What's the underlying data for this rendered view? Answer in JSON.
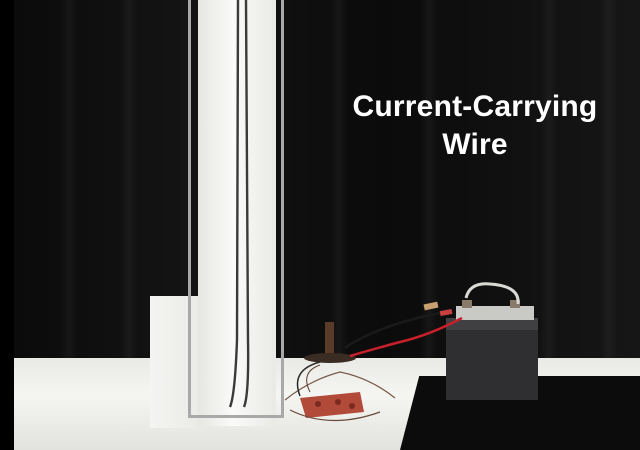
{
  "caption": {
    "line1": "Current-Carrying",
    "line2": "Wire"
  },
  "scene": {
    "elements": [
      "black-curtain-backdrop",
      "white-vertical-post",
      "hanging-wire",
      "compass",
      "circuit-board",
      "battery",
      "red-lead",
      "black-lead",
      "table"
    ]
  }
}
